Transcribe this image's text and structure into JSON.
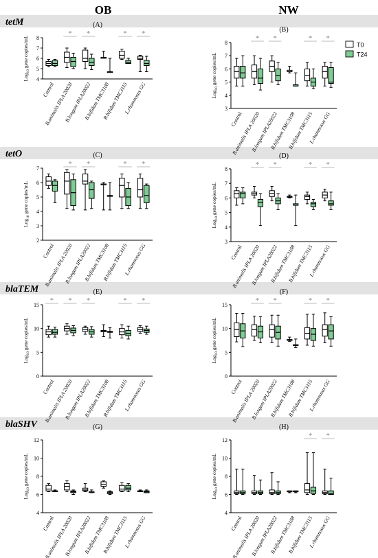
{
  "figure": {
    "column_headers": [
      "OB",
      "NW"
    ],
    "ylabel": "Log10 gene copies/mL",
    "categories": [
      "Control",
      "B.animalis IPLA 20020",
      "B.longum IPLA20022",
      "B.bifidum TMC3108",
      "B.bifidum TMC3115",
      "L.rhamnosus GG"
    ],
    "legend": [
      {
        "name": "T0",
        "color": "#ffffff"
      },
      {
        "name": "T24",
        "color": "#7fcc95"
      }
    ],
    "significance_mark": "*",
    "colors": {
      "t0_fill": "#ffffff",
      "t24_fill": "#7fcc95",
      "sig_line": "#bbbbbb",
      "sig_star": "#888888",
      "band": "#e2e2e2"
    }
  },
  "rows": [
    {
      "gene": "tetM"
    },
    {
      "gene": "tetO"
    },
    {
      "gene": "blaTEM"
    },
    {
      "gene": "blaSHV"
    }
  ],
  "chart_data": [
    {
      "type": "box",
      "panel": "A",
      "gene": "tetM",
      "column": "OB",
      "ylim": [
        4,
        8
      ],
      "yticks": [
        4,
        5,
        6,
        7,
        8
      ],
      "categories": [
        "Control",
        "B.animalis IPLA 20020",
        "B.longum IPLA20022",
        "B.bifidum TMC3108",
        "B.bifidum TMC3115",
        "L.rhamnosus GG"
      ],
      "series": [
        {
          "name": "T0",
          "boxes": [
            [
              5.2,
              5.3,
              5.5,
              5.7,
              5.9
            ],
            [
              5.1,
              5.6,
              6.1,
              6.6,
              7.0
            ],
            [
              5.0,
              5.7,
              6.0,
              6.8,
              7.0
            ],
            [
              6.0,
              6.0,
              6.1,
              6.1,
              6.7
            ],
            [
              5.9,
              6.0,
              6.3,
              6.7,
              6.9
            ],
            [
              4.7,
              5.9,
              6.0,
              6.2,
              6.3
            ]
          ]
        },
        {
          "name": "T24",
          "boxes": [
            [
              5.2,
              5.3,
              5.5,
              5.8,
              5.9
            ],
            [
              5.0,
              5.2,
              5.7,
              6.1,
              6.5
            ],
            [
              4.9,
              5.3,
              5.6,
              6.0,
              6.4
            ],
            [
              4.7,
              4.7,
              4.7,
              4.7,
              6.0
            ],
            [
              5.5,
              5.5,
              5.6,
              5.8,
              6.0
            ],
            [
              4.7,
              5.3,
              5.5,
              5.8,
              6.2
            ]
          ]
        }
      ],
      "significant": [
        false,
        true,
        true,
        false,
        true,
        true
      ]
    },
    {
      "type": "box",
      "panel": "B",
      "gene": "tetM",
      "column": "NW",
      "ylim": [
        3,
        8
      ],
      "yticks": [
        3,
        4,
        5,
        6,
        7,
        8
      ],
      "categories": [
        "Control",
        "B.animalis IPLA 20020",
        "B.longum IPLA20022",
        "B.bifidum TMC3108",
        "B.bifidum TMC3115",
        "L.rhamnosus GG"
      ],
      "series": [
        {
          "name": "T0",
          "boxes": [
            [
              4.7,
              5.3,
              5.8,
              6.2,
              6.8
            ],
            [
              4.8,
              5.3,
              5.8,
              6.3,
              7.0
            ],
            [
              5.0,
              5.8,
              6.2,
              6.6,
              7.0
            ],
            [
              5.7,
              5.8,
              5.8,
              5.9,
              6.2
            ],
            [
              4.7,
              5.1,
              5.5,
              6.0,
              6.5
            ],
            [
              4.7,
              5.3,
              5.8,
              6.2,
              6.5
            ]
          ]
        },
        {
          "name": "T24",
          "boxes": [
            [
              4.7,
              5.3,
              5.7,
              6.2,
              7.0
            ],
            [
              4.4,
              4.9,
              5.3,
              6.0,
              6.8
            ],
            [
              4.8,
              5.1,
              5.5,
              6.0,
              6.5
            ],
            [
              4.7,
              4.7,
              4.7,
              4.8,
              5.7
            ],
            [
              4.5,
              4.7,
              5.0,
              5.3,
              6.0
            ],
            [
              4.6,
              4.9,
              5.0,
              6.1,
              6.5
            ]
          ]
        }
      ],
      "significant": [
        false,
        true,
        true,
        false,
        true,
        true
      ]
    },
    {
      "type": "box",
      "panel": "C",
      "gene": "tetO",
      "column": "OB",
      "ylim": [
        2,
        7
      ],
      "yticks": [
        2,
        3,
        4,
        5,
        6,
        7
      ],
      "categories": [
        "Control",
        "B.animalis IPLA 20020",
        "B.longum IPLA20022",
        "B.bifidum TMC3108",
        "B.bifidum TMC3115",
        "L.rhamnosus GG"
      ],
      "series": [
        {
          "name": "T0",
          "boxes": [
            [
              5.6,
              5.8,
              6.1,
              6.4,
              6.6
            ],
            [
              4.2,
              5.2,
              6.1,
              6.7,
              6.9
            ],
            [
              4.1,
              5.9,
              6.1,
              6.6,
              6.9
            ],
            [
              4.1,
              5.9,
              5.9,
              5.9,
              6.0
            ],
            [
              4.2,
              5.0,
              5.8,
              6.3,
              6.6
            ],
            [
              4.2,
              5.0,
              5.5,
              6.3,
              6.6
            ]
          ]
        },
        {
          "name": "T24",
          "boxes": [
            [
              4.6,
              5.4,
              5.8,
              6.1,
              6.2
            ],
            [
              4.1,
              4.4,
              5.3,
              6.2,
              6.6
            ],
            [
              4.2,
              4.9,
              5.5,
              6.0,
              6.1
            ],
            [
              4.1,
              5.1,
              5.1,
              5.1,
              6.0
            ],
            [
              4.2,
              4.4,
              5.0,
              5.6,
              6.0
            ],
            [
              4.2,
              4.6,
              5.1,
              5.8,
              5.9
            ]
          ]
        }
      ],
      "significant": [
        false,
        true,
        true,
        false,
        true,
        true
      ]
    },
    {
      "type": "box",
      "panel": "D",
      "gene": "tetO",
      "column": "NW",
      "ylim": [
        3,
        8
      ],
      "yticks": [
        3,
        4,
        5,
        6,
        7,
        8
      ],
      "categories": [
        "Control",
        "B.animalis IPLA 20020",
        "B.longum IPLA20022",
        "B.bifidum TMC3108",
        "B.bifidum TMC3115",
        "L.rhamnosus GG"
      ],
      "series": [
        {
          "name": "T0",
          "boxes": [
            [
              5.5,
              6.0,
              6.3,
              6.5,
              6.7
            ],
            [
              6.0,
              6.2,
              6.3,
              6.4,
              6.8
            ],
            [
              5.8,
              6.1,
              6.3,
              6.5,
              6.8
            ],
            [
              6.0,
              6.1,
              6.1,
              6.1,
              6.2
            ],
            [
              5.6,
              5.9,
              6.1,
              6.2,
              6.4
            ],
            [
              5.8,
              6.0,
              6.2,
              6.4,
              6.6
            ]
          ]
        },
        {
          "name": "T24",
          "boxes": [
            [
              5.6,
              6.0,
              6.3,
              6.4,
              6.7
            ],
            [
              4.1,
              5.4,
              5.7,
              5.9,
              6.3
            ],
            [
              5.2,
              5.6,
              5.8,
              6.0,
              6.3
            ],
            [
              4.1,
              5.5,
              5.5,
              5.6,
              6.2
            ],
            [
              5.2,
              5.4,
              5.6,
              5.7,
              5.9
            ],
            [
              5.2,
              5.5,
              5.6,
              5.8,
              6.4
            ]
          ]
        }
      ],
      "significant": [
        false,
        true,
        true,
        false,
        true,
        true
      ]
    },
    {
      "type": "box",
      "panel": "E",
      "gene": "blaTEM",
      "column": "OB",
      "ylim": [
        0,
        15
      ],
      "yticks": [
        0,
        5,
        10,
        15
      ],
      "categories": [
        "Control",
        "B.animalis IPLA 20020",
        "B.longum IPLA20022",
        "B.bifidum TMC3108",
        "B.bifidum TMC3115",
        "L.rhamnosus GG"
      ],
      "series": [
        {
          "name": "T0",
          "boxes": [
            [
              8.2,
              8.7,
              9.3,
              9.8,
              10.5
            ],
            [
              8.8,
              9.5,
              10.0,
              10.5,
              11.0
            ],
            [
              8.8,
              9.4,
              9.8,
              10.2,
              10.5
            ],
            [
              8.3,
              9.3,
              9.5,
              9.6,
              10.8
            ],
            [
              8.0,
              8.7,
              9.3,
              10.0,
              10.8
            ],
            [
              9.0,
              9.4,
              9.8,
              10.2,
              10.6
            ]
          ]
        },
        {
          "name": "T24",
          "boxes": [
            [
              8.2,
              8.8,
              9.2,
              9.8,
              10.3
            ],
            [
              8.5,
              9.1,
              9.6,
              10.1,
              10.6
            ],
            [
              8.2,
              8.8,
              9.3,
              9.8,
              10.4
            ],
            [
              8.0,
              9.2,
              9.3,
              9.4,
              10.2
            ],
            [
              7.8,
              8.5,
              9.0,
              9.6,
              10.5
            ],
            [
              8.8,
              9.2,
              9.6,
              9.9,
              10.5
            ]
          ]
        }
      ],
      "significant": [
        true,
        true,
        true,
        false,
        true,
        true
      ]
    },
    {
      "type": "box",
      "panel": "F",
      "gene": "blaTEM",
      "column": "NW",
      "ylim": [
        0,
        15
      ],
      "yticks": [
        0,
        5,
        10,
        15
      ],
      "categories": [
        "Control",
        "B.animalis IPLA 20020",
        "B.longum IPLA20022",
        "B.bifidum TMC3108",
        "B.bifidum TMC3115",
        "L.rhamnosus GG"
      ],
      "series": [
        {
          "name": "T0",
          "boxes": [
            [
              7.2,
              8.3,
              9.8,
              11.2,
              13.2
            ],
            [
              7.5,
              8.4,
              9.8,
              10.8,
              12.6
            ],
            [
              7.0,
              8.2,
              9.8,
              10.8,
              12.8
            ],
            [
              7.3,
              7.5,
              7.6,
              7.7,
              8.2
            ],
            [
              6.5,
              7.8,
              9.0,
              10.2,
              13.0
            ],
            [
              7.0,
              8.4,
              9.8,
              10.8,
              13.3
            ]
          ]
        },
        {
          "name": "T24",
          "boxes": [
            [
              6.2,
              8.0,
              9.5,
              11.0,
              13.2
            ],
            [
              7.0,
              8.0,
              9.3,
              10.5,
              12.5
            ],
            [
              6.3,
              7.8,
              9.2,
              10.5,
              12.8
            ],
            [
              6.0,
              6.4,
              6.5,
              6.6,
              7.8
            ],
            [
              6.3,
              7.5,
              8.8,
              10.0,
              13.0
            ],
            [
              6.3,
              7.8,
              9.5,
              10.8,
              12.5
            ]
          ]
        }
      ],
      "significant": [
        false,
        true,
        true,
        false,
        true,
        true
      ]
    },
    {
      "type": "box",
      "panel": "G",
      "gene": "blaSHV",
      "column": "OB",
      "ylim": [
        4,
        12
      ],
      "yticks": [
        4,
        6,
        8,
        10,
        12
      ],
      "categories": [
        "Control",
        "B.animalis IPLA 20020",
        "B.longum IPLA20022",
        "B.bifidum TMC3108",
        "B.bifidum TMC3115",
        "L.rhamnosus GG"
      ],
      "series": [
        {
          "name": "T0",
          "boxes": [
            [
              6.3,
              6.4,
              6.6,
              7.0,
              7.2
            ],
            [
              6.3,
              6.5,
              6.9,
              7.2,
              7.5
            ],
            [
              6.3,
              6.4,
              6.5,
              6.7,
              7.2
            ],
            [
              6.7,
              6.9,
              7.1,
              7.4,
              7.5
            ],
            [
              6.3,
              6.4,
              6.6,
              7.0,
              7.3
            ],
            [
              6.3,
              6.4,
              6.4,
              6.4,
              6.5
            ]
          ]
        },
        {
          "name": "T24",
          "boxes": [
            [
              6.4,
              6.4,
              6.4,
              6.4,
              6.5
            ],
            [
              6.0,
              6.2,
              6.3,
              6.4,
              6.5
            ],
            [
              6.2,
              6.3,
              6.3,
              6.3,
              6.5
            ],
            [
              6.0,
              6.1,
              6.2,
              6.3,
              6.4
            ],
            [
              6.3,
              6.5,
              6.7,
              7.0,
              7.2
            ],
            [
              6.2,
              6.2,
              6.3,
              6.4,
              6.5
            ]
          ]
        }
      ],
      "significant": [
        false,
        false,
        false,
        false,
        false,
        false
      ]
    },
    {
      "type": "box",
      "panel": "H",
      "gene": "blaSHV",
      "column": "NW",
      "ylim": [
        4,
        12
      ],
      "yticks": [
        4,
        6,
        8,
        10,
        12
      ],
      "categories": [
        "Control",
        "B.animalis IPLA 20020",
        "B.longum IPLA20022",
        "B.bifidum TMC3108",
        "B.bifidum TMC3115",
        "L.rhamnosus GG"
      ],
      "series": [
        {
          "name": "T0",
          "boxes": [
            [
              6.0,
              6.1,
              6.2,
              6.4,
              8.8
            ],
            [
              6.0,
              6.1,
              6.2,
              6.4,
              8.1
            ],
            [
              6.0,
              6.1,
              6.2,
              6.5,
              8.4
            ],
            [
              6.2,
              6.3,
              6.3,
              6.4,
              6.4
            ],
            [
              6.0,
              6.2,
              6.5,
              7.2,
              10.6
            ],
            [
              6.0,
              6.1,
              6.2,
              6.4,
              8.8
            ]
          ]
        },
        {
          "name": "T24",
          "boxes": [
            [
              6.0,
              6.1,
              6.2,
              6.4,
              8.8
            ],
            [
              6.0,
              6.1,
              6.2,
              6.4,
              7.6
            ],
            [
              6.0,
              6.1,
              6.2,
              6.4,
              7.4
            ],
            [
              6.2,
              6.3,
              6.3,
              6.4,
              6.4
            ],
            [
              6.0,
              6.1,
              6.4,
              6.8,
              10.6
            ],
            [
              6.0,
              6.0,
              6.1,
              6.4,
              7.8
            ]
          ]
        }
      ],
      "significant": [
        false,
        false,
        false,
        false,
        true,
        true
      ]
    }
  ]
}
